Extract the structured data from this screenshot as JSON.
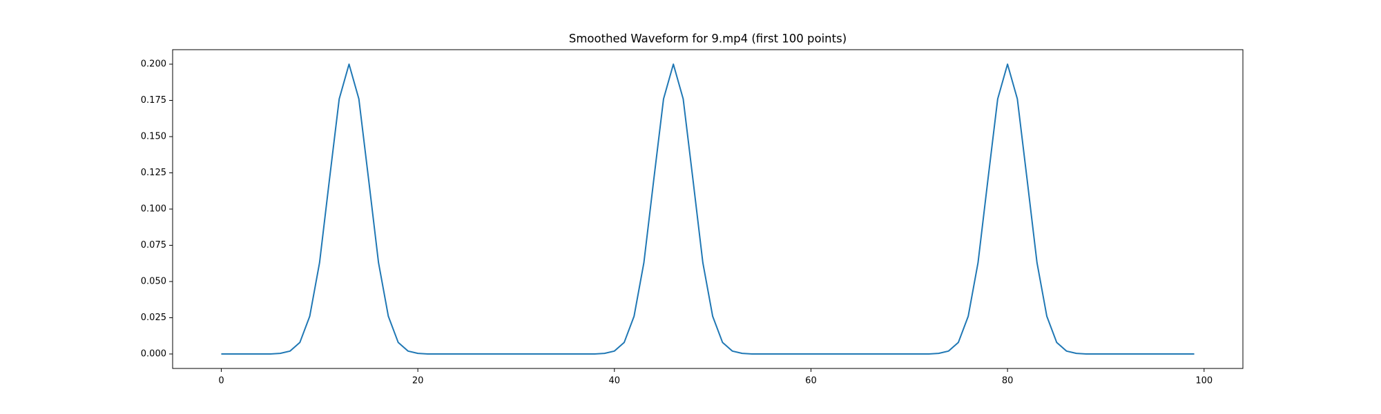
{
  "chart_data": {
    "type": "line",
    "title": "Smoothed Waveform for 9.mp4 (first 100 points)",
    "x": [
      0,
      1,
      2,
      3,
      4,
      5,
      6,
      7,
      8,
      9,
      10,
      11,
      12,
      13,
      14,
      15,
      16,
      17,
      18,
      19,
      20,
      21,
      22,
      23,
      24,
      25,
      26,
      27,
      28,
      29,
      30,
      31,
      32,
      33,
      34,
      35,
      36,
      37,
      38,
      39,
      40,
      41,
      42,
      43,
      44,
      45,
      46,
      47,
      48,
      49,
      50,
      51,
      52,
      53,
      54,
      55,
      56,
      57,
      58,
      59,
      60,
      61,
      62,
      63,
      64,
      65,
      66,
      67,
      68,
      69,
      70,
      71,
      72,
      73,
      74,
      75,
      76,
      77,
      78,
      79,
      80,
      81,
      82,
      83,
      84,
      85,
      86,
      87,
      88,
      89,
      90,
      91,
      92,
      93,
      94,
      95,
      96,
      97,
      98,
      99
    ],
    "series": [
      {
        "color": "#1f77b4",
        "values": [
          0,
          0,
          0,
          0,
          0,
          0,
          0.0004,
          0.002,
          0.008,
          0.026,
          0.063,
          0.12,
          0.176,
          0.2,
          0.176,
          0.12,
          0.063,
          0.026,
          0.008,
          0.002,
          0.0004,
          0,
          0,
          0,
          0,
          0,
          0,
          0,
          0,
          0,
          0,
          0,
          0,
          0,
          0,
          0,
          0,
          0,
          0,
          0.0004,
          0.002,
          0.008,
          0.026,
          0.063,
          0.12,
          0.176,
          0.2,
          0.176,
          0.12,
          0.063,
          0.026,
          0.008,
          0.002,
          0.0004,
          0,
          0,
          0,
          0,
          0,
          0,
          0,
          0,
          0,
          0,
          0,
          0,
          0,
          0,
          0,
          0,
          0,
          0,
          0,
          0.0004,
          0.002,
          0.008,
          0.026,
          0.063,
          0.12,
          0.176,
          0.2,
          0.176,
          0.12,
          0.063,
          0.026,
          0.008,
          0.002,
          0.0004,
          0,
          0,
          0,
          0,
          0,
          0,
          0,
          0,
          0,
          0,
          0,
          0
        ]
      }
    ],
    "xlim": [
      -4.95,
      103.95
    ],
    "xticks": [
      0,
      20,
      40,
      60,
      80,
      100
    ],
    "ylim": [
      -0.01,
      0.21
    ],
    "yticks": [
      {
        "value": 0,
        "label": "0.000"
      },
      {
        "value": 0.025,
        "label": "0.025"
      },
      {
        "value": 0.05,
        "label": "0.050"
      },
      {
        "value": 0.075,
        "label": "0.075"
      },
      {
        "value": 0.1,
        "label": "0.100"
      },
      {
        "value": 0.125,
        "label": "0.125"
      },
      {
        "value": 0.15,
        "label": "0.150"
      },
      {
        "value": 0.175,
        "label": "0.175"
      },
      {
        "value": 0.2,
        "label": "0.200"
      }
    ],
    "grid": false
  }
}
